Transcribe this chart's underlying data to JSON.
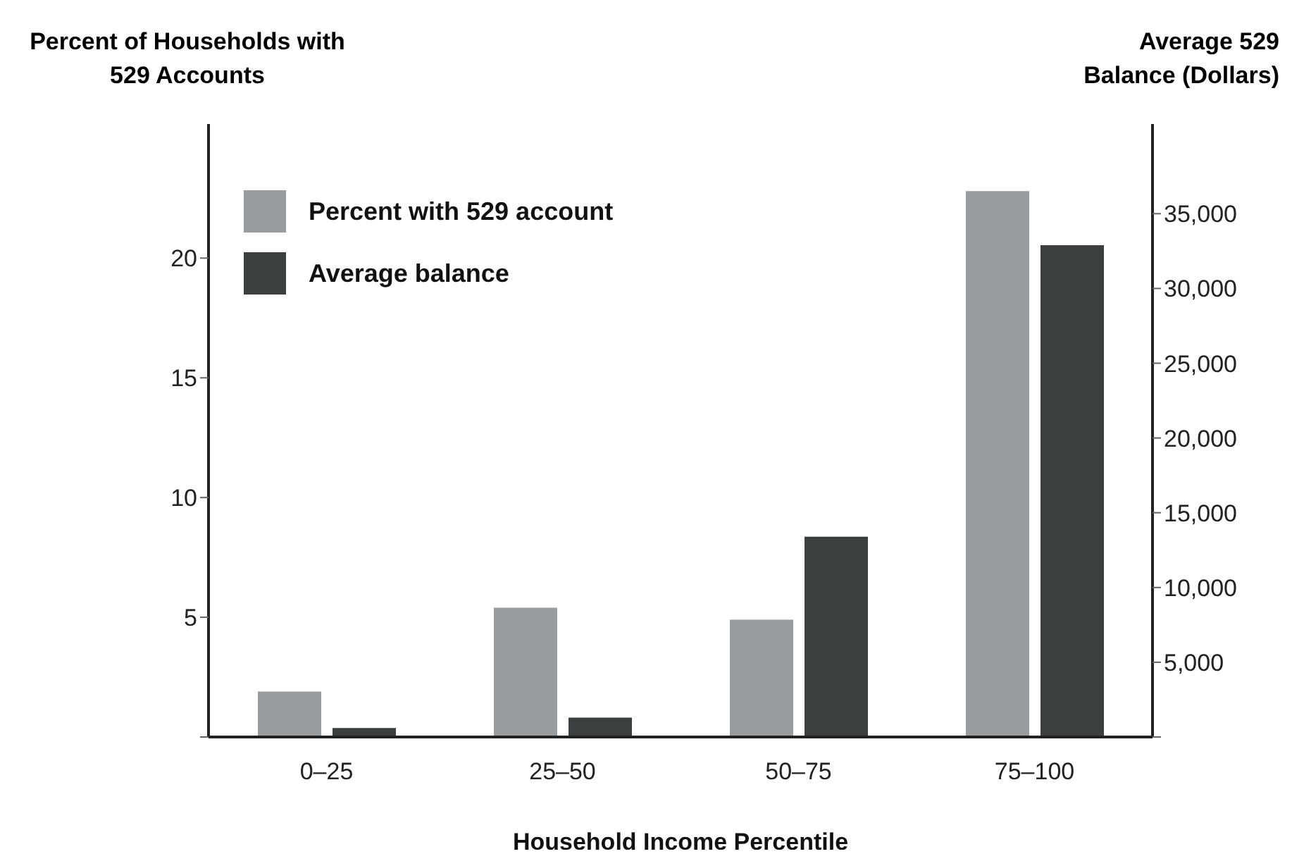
{
  "chart_data": {
    "type": "bar",
    "xlabel": "Household Income Percentile",
    "ylabel": "Percent of Households with 529 Accounts",
    "y2label": "Average 529 Balance (Dollars)",
    "categories": [
      "0–25",
      "25–50",
      "50–75",
      "75–100"
    ],
    "series": [
      {
        "name": "Percent with 529 account",
        "color": "#999c9e",
        "values": [
          1.9,
          5.4,
          4.9,
          22.8
        ]
      },
      {
        "name": "Average balance",
        "color": "#3c3f40",
        "axis": "y2",
        "values": [
          600,
          1300,
          13400,
          32900
        ]
      }
    ],
    "ylim": [
      0,
      25.6
    ],
    "yticks": [
      {
        "value": 0,
        "label": null
      },
      5,
      10,
      15,
      20
    ],
    "y2lim": [
      0,
      41000
    ],
    "y2ticks": [
      {
        "value": 0,
        "label": null
      },
      {
        "value": 5000,
        "label": "5,000"
      },
      {
        "value": 10000,
        "label": "10,000"
      },
      {
        "value": 15000,
        "label": "15,000"
      },
      {
        "value": 20000,
        "label": "20,000"
      },
      {
        "value": 25000,
        "label": "25,000"
      },
      {
        "value": 30000,
        "label": "30,000"
      },
      {
        "value": 35000,
        "label": "35,000"
      }
    ],
    "grid": false,
    "legend": "top left"
  }
}
